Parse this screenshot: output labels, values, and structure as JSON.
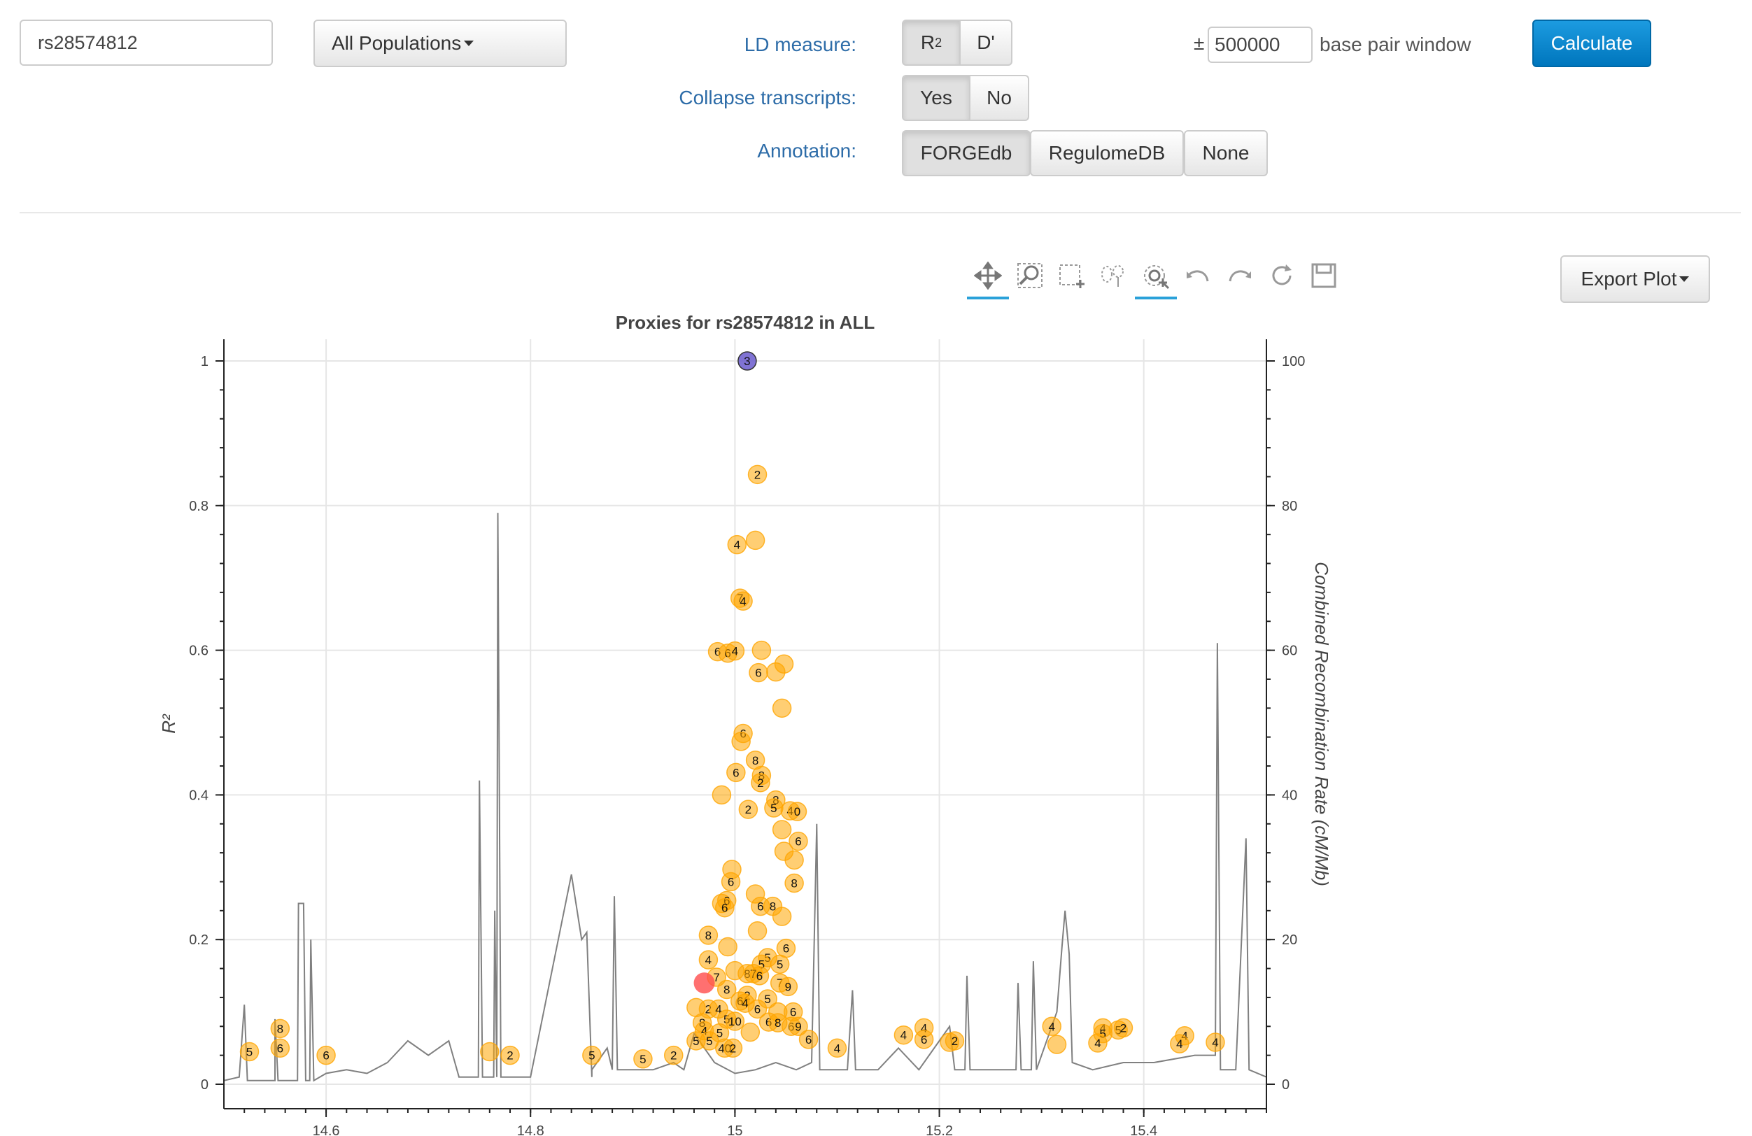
{
  "form": {
    "snp_value": "rs28574812",
    "population": "All Populations",
    "ld_measure_label": "LD measure:",
    "r2_base": "R",
    "r2_sup": "2",
    "dprime": "D'",
    "collapse_label": "Collapse transcripts:",
    "yes": "Yes",
    "no": "No",
    "annotation_label": "Annotation:",
    "annotation_options": [
      "FORGEdb",
      "RegulomeDB",
      "None"
    ],
    "pm": "±",
    "window_value": "500000",
    "window_suffix": "base pair window",
    "calculate": "Calculate"
  },
  "toolbar": {
    "tools": [
      "pan-icon",
      "box-zoom-icon",
      "box-select-icon",
      "lasso-select-icon",
      "wheel-zoom-icon",
      "undo-icon",
      "redo-icon",
      "reset-icon",
      "save-icon"
    ],
    "export_label": "Export Plot"
  },
  "chart_data": {
    "type": "scatter",
    "title": "Proxies for rs28574812 in ALL",
    "ylabel": "R²",
    "y2label": "Combined Recombination Rate (cM/Mb)",
    "xlim": [
      14.5,
      15.52
    ],
    "ylim": [
      0,
      1
    ],
    "y2lim": [
      0,
      100
    ],
    "xticks": [
      14.6,
      14.8,
      15,
      15.2,
      15.4
    ],
    "xtick_labels": [
      "14.6",
      "14.8",
      "15",
      "15.2",
      "15.4"
    ],
    "yticks": [
      0,
      0.2,
      0.4,
      0.6,
      0.8,
      1
    ],
    "ytick_labels": [
      "0",
      "0.2",
      "0.4",
      "0.6",
      "0.8",
      "1"
    ],
    "y2ticks": [
      0,
      20,
      40,
      60,
      80,
      100
    ],
    "y2tick_labels": [
      "0",
      "20",
      "40",
      "60",
      "80",
      "100"
    ],
    "grid": true,
    "colors": {
      "proxy": "#ffa500",
      "query": "#6a5acd",
      "highlight": "#ff4c4c",
      "recomb": "#808080"
    },
    "query": {
      "x": 15.012,
      "y": 1.0,
      "label": "3"
    },
    "highlight": {
      "x": 14.97,
      "y": 0.14
    },
    "proxies": [
      {
        "x": 15.022,
        "y": 0.843,
        "label": "2"
      },
      {
        "x": 15.002,
        "y": 0.746,
        "label": "4"
      },
      {
        "x": 15.02,
        "y": 0.752,
        "label": ""
      },
      {
        "x": 15.005,
        "y": 0.672,
        "label": "7"
      },
      {
        "x": 15.008,
        "y": 0.668,
        "label": "4"
      },
      {
        "x": 14.983,
        "y": 0.598,
        "label": "6"
      },
      {
        "x": 14.993,
        "y": 0.596,
        "label": "6"
      },
      {
        "x": 15.0,
        "y": 0.599,
        "label": "4"
      },
      {
        "x": 15.026,
        "y": 0.6,
        "label": ""
      },
      {
        "x": 15.023,
        "y": 0.569,
        "label": "6"
      },
      {
        "x": 15.04,
        "y": 0.57,
        "label": ""
      },
      {
        "x": 15.048,
        "y": 0.581,
        "label": ""
      },
      {
        "x": 15.046,
        "y": 0.52,
        "label": ""
      },
      {
        "x": 15.008,
        "y": 0.485,
        "label": "6"
      },
      {
        "x": 15.006,
        "y": 0.474,
        "label": ""
      },
      {
        "x": 15.02,
        "y": 0.448,
        "label": "8"
      },
      {
        "x": 15.001,
        "y": 0.431,
        "label": "6"
      },
      {
        "x": 15.026,
        "y": 0.427,
        "label": "8"
      },
      {
        "x": 15.025,
        "y": 0.417,
        "label": "2"
      },
      {
        "x": 14.987,
        "y": 0.4,
        "label": ""
      },
      {
        "x": 15.04,
        "y": 0.393,
        "label": "8"
      },
      {
        "x": 15.013,
        "y": 0.38,
        "label": "2"
      },
      {
        "x": 15.038,
        "y": 0.382,
        "label": "5"
      },
      {
        "x": 15.054,
        "y": 0.378,
        "label": "4"
      },
      {
        "x": 15.061,
        "y": 0.377,
        "label": "0"
      },
      {
        "x": 15.046,
        "y": 0.352,
        "label": ""
      },
      {
        "x": 15.062,
        "y": 0.336,
        "label": "6"
      },
      {
        "x": 15.048,
        "y": 0.322,
        "label": ""
      },
      {
        "x": 15.058,
        "y": 0.31,
        "label": ""
      },
      {
        "x": 14.997,
        "y": 0.297,
        "label": ""
      },
      {
        "x": 14.996,
        "y": 0.28,
        "label": "6"
      },
      {
        "x": 15.058,
        "y": 0.278,
        "label": "8"
      },
      {
        "x": 15.02,
        "y": 0.263,
        "label": ""
      },
      {
        "x": 14.987,
        "y": 0.25,
        "label": ""
      },
      {
        "x": 14.992,
        "y": 0.254,
        "label": "6"
      },
      {
        "x": 14.99,
        "y": 0.244,
        "label": "6"
      },
      {
        "x": 15.025,
        "y": 0.246,
        "label": "6"
      },
      {
        "x": 15.037,
        "y": 0.246,
        "label": "8"
      },
      {
        "x": 15.046,
        "y": 0.232,
        "label": ""
      },
      {
        "x": 15.022,
        "y": 0.212,
        "label": ""
      },
      {
        "x": 14.974,
        "y": 0.206,
        "label": "8"
      },
      {
        "x": 14.993,
        "y": 0.19,
        "label": ""
      },
      {
        "x": 15.05,
        "y": 0.188,
        "label": "6"
      },
      {
        "x": 14.974,
        "y": 0.172,
        "label": "4"
      },
      {
        "x": 15.032,
        "y": 0.175,
        "label": "5"
      },
      {
        "x": 15.026,
        "y": 0.166,
        "label": "5"
      },
      {
        "x": 15.044,
        "y": 0.166,
        "label": "5"
      },
      {
        "x": 15.0,
        "y": 0.157,
        "label": ""
      },
      {
        "x": 15.012,
        "y": 0.153,
        "label": "8"
      },
      {
        "x": 15.018,
        "y": 0.153,
        "label": "7"
      },
      {
        "x": 15.024,
        "y": 0.15,
        "label": "6"
      },
      {
        "x": 14.982,
        "y": 0.148,
        "label": "7"
      },
      {
        "x": 15.044,
        "y": 0.14,
        "label": "7"
      },
      {
        "x": 15.052,
        "y": 0.135,
        "label": "9"
      },
      {
        "x": 14.992,
        "y": 0.131,
        "label": "8"
      },
      {
        "x": 15.012,
        "y": 0.123,
        "label": "2"
      },
      {
        "x": 15.005,
        "y": 0.115,
        "label": "6"
      },
      {
        "x": 15.01,
        "y": 0.112,
        "label": "4"
      },
      {
        "x": 15.032,
        "y": 0.118,
        "label": "5"
      },
      {
        "x": 14.962,
        "y": 0.106,
        "label": ""
      },
      {
        "x": 14.974,
        "y": 0.104,
        "label": "2"
      },
      {
        "x": 14.984,
        "y": 0.104,
        "label": "4"
      },
      {
        "x": 15.022,
        "y": 0.104,
        "label": "6"
      },
      {
        "x": 15.042,
        "y": 0.1,
        "label": ""
      },
      {
        "x": 15.057,
        "y": 0.1,
        "label": "6"
      },
      {
        "x": 14.968,
        "y": 0.085,
        "label": "8"
      },
      {
        "x": 14.992,
        "y": 0.09,
        "label": "5"
      },
      {
        "x": 15.0,
        "y": 0.087,
        "label": "10"
      },
      {
        "x": 15.033,
        "y": 0.086,
        "label": "6"
      },
      {
        "x": 15.042,
        "y": 0.085,
        "label": "8"
      },
      {
        "x": 15.055,
        "y": 0.08,
        "label": "6"
      },
      {
        "x": 15.062,
        "y": 0.08,
        "label": "9"
      },
      {
        "x": 14.97,
        "y": 0.074,
        "label": "4"
      },
      {
        "x": 14.985,
        "y": 0.071,
        "label": "5"
      },
      {
        "x": 15.015,
        "y": 0.072,
        "label": ""
      },
      {
        "x": 15.072,
        "y": 0.062,
        "label": "6"
      },
      {
        "x": 14.962,
        "y": 0.06,
        "label": "5"
      },
      {
        "x": 14.975,
        "y": 0.06,
        "label": "5"
      },
      {
        "x": 14.99,
        "y": 0.05,
        "label": "40"
      },
      {
        "x": 14.998,
        "y": 0.05,
        "label": "2"
      },
      {
        "x": 15.1,
        "y": 0.05,
        "label": "4"
      },
      {
        "x": 15.165,
        "y": 0.068,
        "label": "4"
      },
      {
        "x": 15.185,
        "y": 0.078,
        "label": "4"
      },
      {
        "x": 15.185,
        "y": 0.062,
        "label": "6"
      },
      {
        "x": 15.21,
        "y": 0.058,
        "label": ""
      },
      {
        "x": 15.215,
        "y": 0.06,
        "label": "2"
      },
      {
        "x": 15.31,
        "y": 0.08,
        "label": "4"
      },
      {
        "x": 15.315,
        "y": 0.055,
        "label": ""
      },
      {
        "x": 15.36,
        "y": 0.078,
        "label": "4"
      },
      {
        "x": 15.375,
        "y": 0.075,
        "label": "5"
      },
      {
        "x": 15.38,
        "y": 0.078,
        "label": "2"
      },
      {
        "x": 15.36,
        "y": 0.07,
        "label": "5"
      },
      {
        "x": 15.355,
        "y": 0.057,
        "label": "4"
      },
      {
        "x": 15.44,
        "y": 0.067,
        "label": "4"
      },
      {
        "x": 15.435,
        "y": 0.056,
        "label": "4"
      },
      {
        "x": 15.47,
        "y": 0.058,
        "label": "4"
      },
      {
        "x": 14.555,
        "y": 0.077,
        "label": "8"
      },
      {
        "x": 14.555,
        "y": 0.05,
        "label": "6"
      },
      {
        "x": 14.525,
        "y": 0.045,
        "label": "5"
      },
      {
        "x": 14.6,
        "y": 0.04,
        "label": "6"
      },
      {
        "x": 14.76,
        "y": 0.045,
        "label": ""
      },
      {
        "x": 14.78,
        "y": 0.04,
        "label": "2"
      },
      {
        "x": 14.86,
        "y": 0.04,
        "label": "5"
      },
      {
        "x": 14.91,
        "y": 0.035,
        "label": "5"
      },
      {
        "x": 14.94,
        "y": 0.04,
        "label": "2"
      }
    ],
    "recombination": [
      [
        14.5,
        0.5
      ],
      [
        14.515,
        1
      ],
      [
        14.52,
        11
      ],
      [
        14.523,
        0.5
      ],
      [
        14.55,
        0.5
      ],
      [
        14.55,
        9
      ],
      [
        14.553,
        0.5
      ],
      [
        14.572,
        0.5
      ],
      [
        14.573,
        25
      ],
      [
        14.578,
        25
      ],
      [
        14.58,
        0.5
      ],
      [
        14.584,
        0.5
      ],
      [
        14.585,
        20
      ],
      [
        14.588,
        0.5
      ],
      [
        14.6,
        1.5
      ],
      [
        14.62,
        2
      ],
      [
        14.64,
        1.5
      ],
      [
        14.66,
        3
      ],
      [
        14.68,
        6
      ],
      [
        14.7,
        4
      ],
      [
        14.72,
        6
      ],
      [
        14.73,
        1
      ],
      [
        14.749,
        1
      ],
      [
        14.75,
        42
      ],
      [
        14.753,
        1
      ],
      [
        14.764,
        1
      ],
      [
        14.765,
        24
      ],
      [
        14.767,
        1
      ],
      [
        14.768,
        79
      ],
      [
        14.771,
        1
      ],
      [
        14.8,
        1
      ],
      [
        14.84,
        29
      ],
      [
        14.85,
        20
      ],
      [
        14.855,
        21
      ],
      [
        14.86,
        1
      ],
      [
        14.86,
        2
      ],
      [
        14.875,
        5
      ],
      [
        14.88,
        2
      ],
      [
        14.882,
        26
      ],
      [
        14.885,
        2
      ],
      [
        14.92,
        2
      ],
      [
        14.94,
        3
      ],
      [
        14.95,
        2
      ],
      [
        14.96,
        7
      ],
      [
        14.98,
        3
      ],
      [
        15.0,
        1.5
      ],
      [
        15.02,
        2
      ],
      [
        15.04,
        3
      ],
      [
        15.06,
        2
      ],
      [
        15.075,
        3
      ],
      [
        15.08,
        36
      ],
      [
        15.083,
        2
      ],
      [
        15.1,
        2
      ],
      [
        15.11,
        2
      ],
      [
        15.115,
        13
      ],
      [
        15.118,
        2
      ],
      [
        15.14,
        2
      ],
      [
        15.16,
        5
      ],
      [
        15.18,
        2
      ],
      [
        15.2,
        6
      ],
      [
        15.21,
        8
      ],
      [
        15.215,
        2
      ],
      [
        15.225,
        2
      ],
      [
        15.227,
        15
      ],
      [
        15.23,
        2
      ],
      [
        15.26,
        2
      ],
      [
        15.275,
        2
      ],
      [
        15.277,
        14
      ],
      [
        15.28,
        2
      ],
      [
        15.29,
        2
      ],
      [
        15.292,
        17
      ],
      [
        15.295,
        2
      ],
      [
        15.31,
        8
      ],
      [
        15.315,
        10
      ],
      [
        15.32,
        19
      ],
      [
        15.323,
        24
      ],
      [
        15.327,
        18
      ],
      [
        15.33,
        3
      ],
      [
        15.35,
        2
      ],
      [
        15.38,
        3
      ],
      [
        15.41,
        3
      ],
      [
        15.45,
        4
      ],
      [
        15.47,
        4
      ],
      [
        15.472,
        61
      ],
      [
        15.475,
        2
      ],
      [
        15.49,
        2
      ],
      [
        15.5,
        34
      ],
      [
        15.503,
        2
      ],
      [
        15.52,
        1
      ]
    ]
  }
}
